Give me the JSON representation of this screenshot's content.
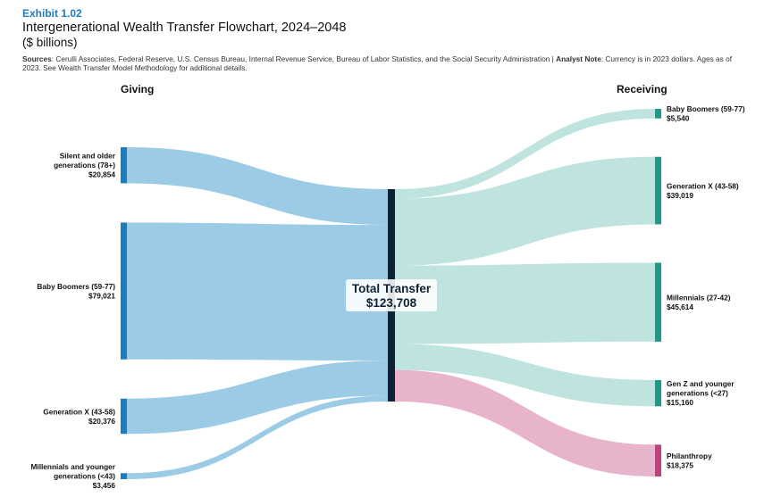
{
  "header": {
    "exhibit": "Exhibit 1.02",
    "title": "Intergenerational Wealth Transfer Flowchart, 2024–2048",
    "subtitle": "($ billions)",
    "sources_label": "Sources",
    "sources_text": ": Cerulli Associates, Federal Reserve, U.S. Census Bureau, Internal Revenue Service, Bureau of Labor Statistics, and the Social Security Administration",
    "separator": "|",
    "analyst_label": "Analyst Note",
    "analyst_text": ": Currency is in 2023 dollars. Ages as of 2023. See Wealth Transfer Model Methodology for additional details."
  },
  "chart_data": {
    "type": "sankey",
    "units": "$ billions",
    "giving_header": "Giving",
    "receiving_header": "Receiving",
    "center": {
      "label": "Total Transfer",
      "value_label": "$123,708",
      "value": 123708
    },
    "sources": [
      {
        "lines": [
          "Silent and older",
          "generations (78+)"
        ],
        "value_label": "$20,854",
        "value": 20854
      },
      {
        "lines": [
          "Baby Boomers (59-77)"
        ],
        "value_label": "$79,021",
        "value": 79021
      },
      {
        "lines": [
          "Generation X (43-58)"
        ],
        "value_label": "$20,376",
        "value": 20376
      },
      {
        "lines": [
          "Millennials and younger",
          "generations (<43)"
        ],
        "value_label": "$3,456",
        "value": 3456
      }
    ],
    "targets": [
      {
        "lines": [
          "Baby Boomers (59-77)"
        ],
        "value_label": "$5,540",
        "value": 5540
      },
      {
        "lines": [
          "Generation X (43-58)"
        ],
        "value_label": "$39,019",
        "value": 39019
      },
      {
        "lines": [
          "Millennials (27-42)"
        ],
        "value_label": "$45,614",
        "value": 45614
      },
      {
        "lines": [
          "Gen Z and younger",
          "generations (<27)"
        ],
        "value_label": "$15,160",
        "value": 15160
      },
      {
        "lines": [
          "Philanthropy"
        ],
        "value_label": "$18,375",
        "value": 18375
      }
    ],
    "colors": {
      "source_bar": "#1a7dbf",
      "source_flow": "#9ccbe6",
      "target_bar": "#1b9a8a",
      "target_flow": "#bfe3de",
      "philanthropy_bar": "#c2407f",
      "philanthropy_flow": "#e8b4cc",
      "center_bar": "#0d2236"
    }
  }
}
